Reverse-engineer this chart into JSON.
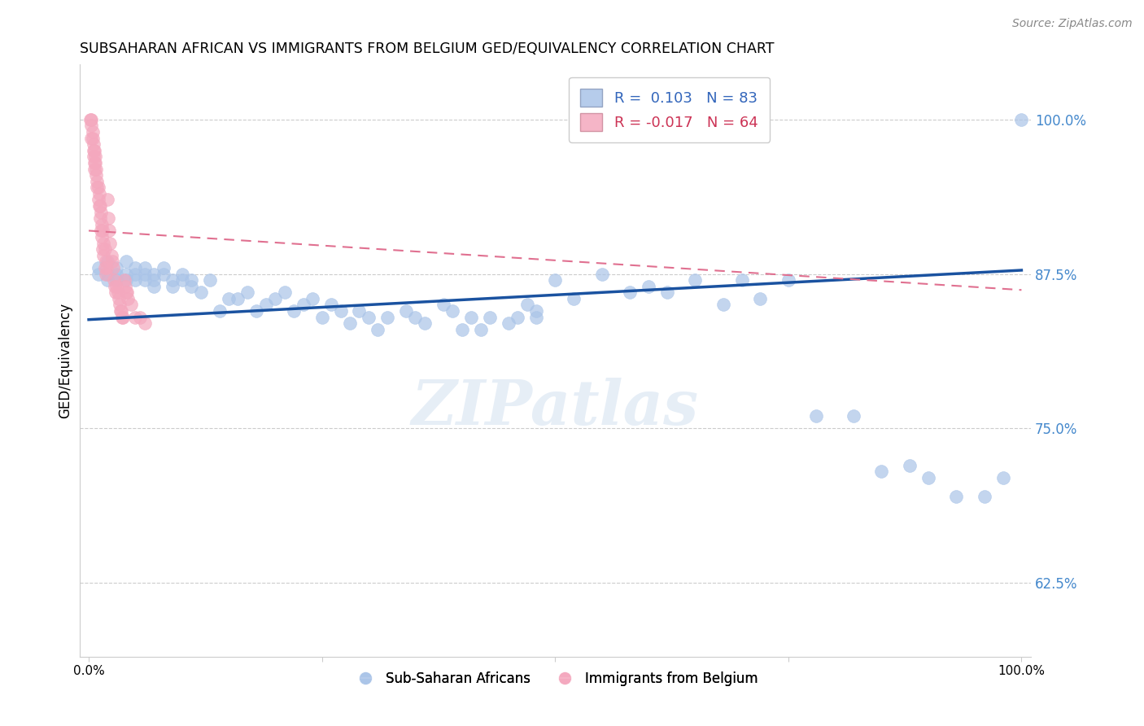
{
  "title": "SUBSAHARAN AFRICAN VS IMMIGRANTS FROM BELGIUM GED/EQUIVALENCY CORRELATION CHART",
  "source": "Source: ZipAtlas.com",
  "ylabel": "GED/Equivalency",
  "y_tick_labels": [
    "62.5%",
    "75.0%",
    "87.5%",
    "100.0%"
  ],
  "y_tick_values": [
    0.625,
    0.75,
    0.875,
    1.0
  ],
  "x_lim": [
    -0.01,
    1.01
  ],
  "y_lim": [
    0.565,
    1.045
  ],
  "blue_color": "#aac4e8",
  "pink_color": "#f4a8be",
  "blue_line_color": "#1a52a0",
  "pink_line_color": "#e07090",
  "watermark": "ZIPatlas",
  "legend_labels": [
    "Sub-Saharan Africans",
    "Immigrants from Belgium"
  ],
  "blue_R": 0.103,
  "blue_N": 83,
  "pink_R": -0.017,
  "pink_N": 64,
  "blue_scatter_x": [
    0.01,
    0.01,
    0.02,
    0.02,
    0.02,
    0.03,
    0.03,
    0.03,
    0.04,
    0.04,
    0.04,
    0.05,
    0.05,
    0.05,
    0.06,
    0.06,
    0.06,
    0.07,
    0.07,
    0.07,
    0.08,
    0.08,
    0.09,
    0.09,
    0.1,
    0.1,
    0.11,
    0.11,
    0.12,
    0.13,
    0.14,
    0.15,
    0.16,
    0.17,
    0.18,
    0.19,
    0.2,
    0.21,
    0.22,
    0.23,
    0.24,
    0.25,
    0.26,
    0.27,
    0.28,
    0.29,
    0.3,
    0.31,
    0.32,
    0.34,
    0.35,
    0.36,
    0.38,
    0.39,
    0.4,
    0.41,
    0.42,
    0.43,
    0.45,
    0.46,
    0.47,
    0.48,
    0.5,
    0.52,
    0.55,
    0.58,
    0.6,
    0.62,
    0.65,
    0.68,
    0.7,
    0.72,
    0.75,
    0.78,
    0.82,
    0.85,
    0.88,
    0.9,
    0.93,
    0.96,
    0.98,
    1.0,
    0.48
  ],
  "blue_scatter_y": [
    0.88,
    0.875,
    0.885,
    0.87,
    0.875,
    0.87,
    0.875,
    0.88,
    0.87,
    0.875,
    0.885,
    0.875,
    0.87,
    0.88,
    0.875,
    0.87,
    0.88,
    0.865,
    0.875,
    0.87,
    0.88,
    0.875,
    0.865,
    0.87,
    0.875,
    0.87,
    0.865,
    0.87,
    0.86,
    0.87,
    0.845,
    0.855,
    0.855,
    0.86,
    0.845,
    0.85,
    0.855,
    0.86,
    0.845,
    0.85,
    0.855,
    0.84,
    0.85,
    0.845,
    0.835,
    0.845,
    0.84,
    0.83,
    0.84,
    0.845,
    0.84,
    0.835,
    0.85,
    0.845,
    0.83,
    0.84,
    0.83,
    0.84,
    0.835,
    0.84,
    0.85,
    0.845,
    0.87,
    0.855,
    0.875,
    0.86,
    0.865,
    0.86,
    0.87,
    0.85,
    0.87,
    0.855,
    0.87,
    0.76,
    0.76,
    0.715,
    0.72,
    0.71,
    0.695,
    0.695,
    0.71,
    1.0,
    0.84
  ],
  "pink_scatter_x": [
    0.003,
    0.004,
    0.005,
    0.006,
    0.007,
    0.008,
    0.009,
    0.01,
    0.011,
    0.012,
    0.013,
    0.014,
    0.015,
    0.016,
    0.017,
    0.018,
    0.019,
    0.02,
    0.021,
    0.022,
    0.023,
    0.024,
    0.025,
    0.026,
    0.027,
    0.028,
    0.029,
    0.03,
    0.031,
    0.032,
    0.033,
    0.034,
    0.035,
    0.036,
    0.037,
    0.003,
    0.005,
    0.006,
    0.007,
    0.008,
    0.009,
    0.01,
    0.011,
    0.012,
    0.013,
    0.014,
    0.015,
    0.016,
    0.017,
    0.018,
    0.002,
    0.003,
    0.004,
    0.005,
    0.006,
    0.038,
    0.039,
    0.04,
    0.041,
    0.042,
    0.045,
    0.05,
    0.055,
    0.06
  ],
  "pink_scatter_y": [
    1.0,
    0.99,
    0.98,
    0.975,
    0.965,
    0.96,
    0.95,
    0.945,
    0.94,
    0.93,
    0.925,
    0.915,
    0.91,
    0.9,
    0.895,
    0.885,
    0.88,
    0.935,
    0.92,
    0.91,
    0.9,
    0.89,
    0.885,
    0.88,
    0.87,
    0.865,
    0.86,
    0.865,
    0.86,
    0.855,
    0.85,
    0.845,
    0.845,
    0.84,
    0.84,
    0.985,
    0.97,
    0.96,
    0.97,
    0.955,
    0.945,
    0.935,
    0.93,
    0.92,
    0.91,
    0.905,
    0.895,
    0.89,
    0.88,
    0.875,
    1.0,
    0.995,
    0.985,
    0.975,
    0.965,
    0.87,
    0.865,
    0.86,
    0.86,
    0.855,
    0.85,
    0.84,
    0.84,
    0.835
  ],
  "blue_trend_x": [
    0.0,
    1.0
  ],
  "blue_trend_y": [
    0.838,
    0.878
  ],
  "pink_trend_x": [
    0.0,
    1.0
  ],
  "pink_trend_y": [
    0.91,
    0.862
  ]
}
